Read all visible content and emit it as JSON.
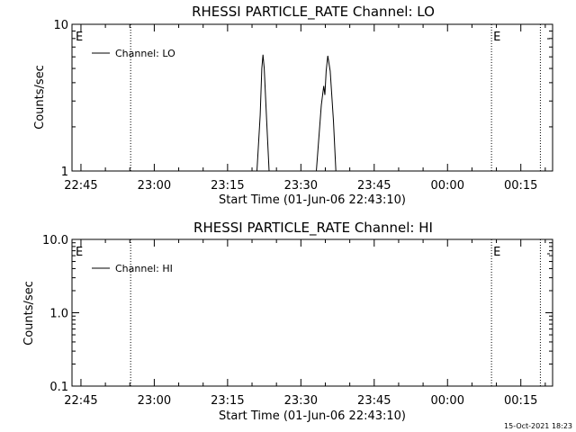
{
  "chart_data": [
    {
      "type": "line",
      "title": "RHESSI PARTICLE_RATE Channel: LO",
      "xlabel": "Start Time (01-Jun-06 22:43:10)",
      "ylabel": "Counts/sec",
      "yscale": "log",
      "ylim": [
        1,
        10
      ],
      "y_ticks": [
        "1",
        "10"
      ],
      "x_ticks": [
        "22:45",
        "23:00",
        "23:15",
        "23:30",
        "23:45",
        "00:00",
        "00:15"
      ],
      "legend": {
        "entries": [
          "Channel: LO"
        ],
        "placement": "top-left"
      },
      "markers": [
        "E",
        "E"
      ],
      "series": [
        {
          "name": "Channel: LO",
          "points": [
            [
              "23:21:00",
              1.0
            ],
            [
              "23:21:40",
              2.4
            ],
            [
              "23:22:00",
              5.0
            ],
            [
              "23:22:15",
              6.2
            ],
            [
              "23:22:30",
              5.0
            ],
            [
              "23:23:00",
              2.2
            ],
            [
              "23:23:30",
              1.0
            ],
            [
              "23:33:10",
              1.0
            ],
            [
              "23:34:10",
              2.8
            ],
            [
              "23:34:40",
              3.8
            ],
            [
              "23:34:55",
              3.3
            ],
            [
              "23:35:10",
              4.8
            ],
            [
              "23:35:30",
              6.1
            ],
            [
              "23:36:00",
              4.8
            ],
            [
              "23:36:40",
              2.2
            ],
            [
              "23:37:10",
              1.0
            ]
          ]
        }
      ]
    },
    {
      "type": "line",
      "title": "RHESSI PARTICLE_RATE Channel: HI",
      "xlabel": "Start Time (01-Jun-06 22:43:10)",
      "ylabel": "Counts/sec",
      "yscale": "log",
      "ylim": [
        0.1,
        10
      ],
      "y_ticks": [
        "0.1",
        "1.0",
        "10.0"
      ],
      "x_ticks": [
        "22:45",
        "23:00",
        "23:15",
        "23:30",
        "23:45",
        "00:00",
        "00:15"
      ],
      "legend": {
        "entries": [
          "Channel: HI"
        ],
        "placement": "top-left"
      },
      "markers": [
        "E",
        "E"
      ],
      "series": [
        {
          "name": "Channel: HI",
          "points": []
        }
      ]
    }
  ],
  "footer": {
    "timestamp": "15-Oct-2021 18:23"
  }
}
